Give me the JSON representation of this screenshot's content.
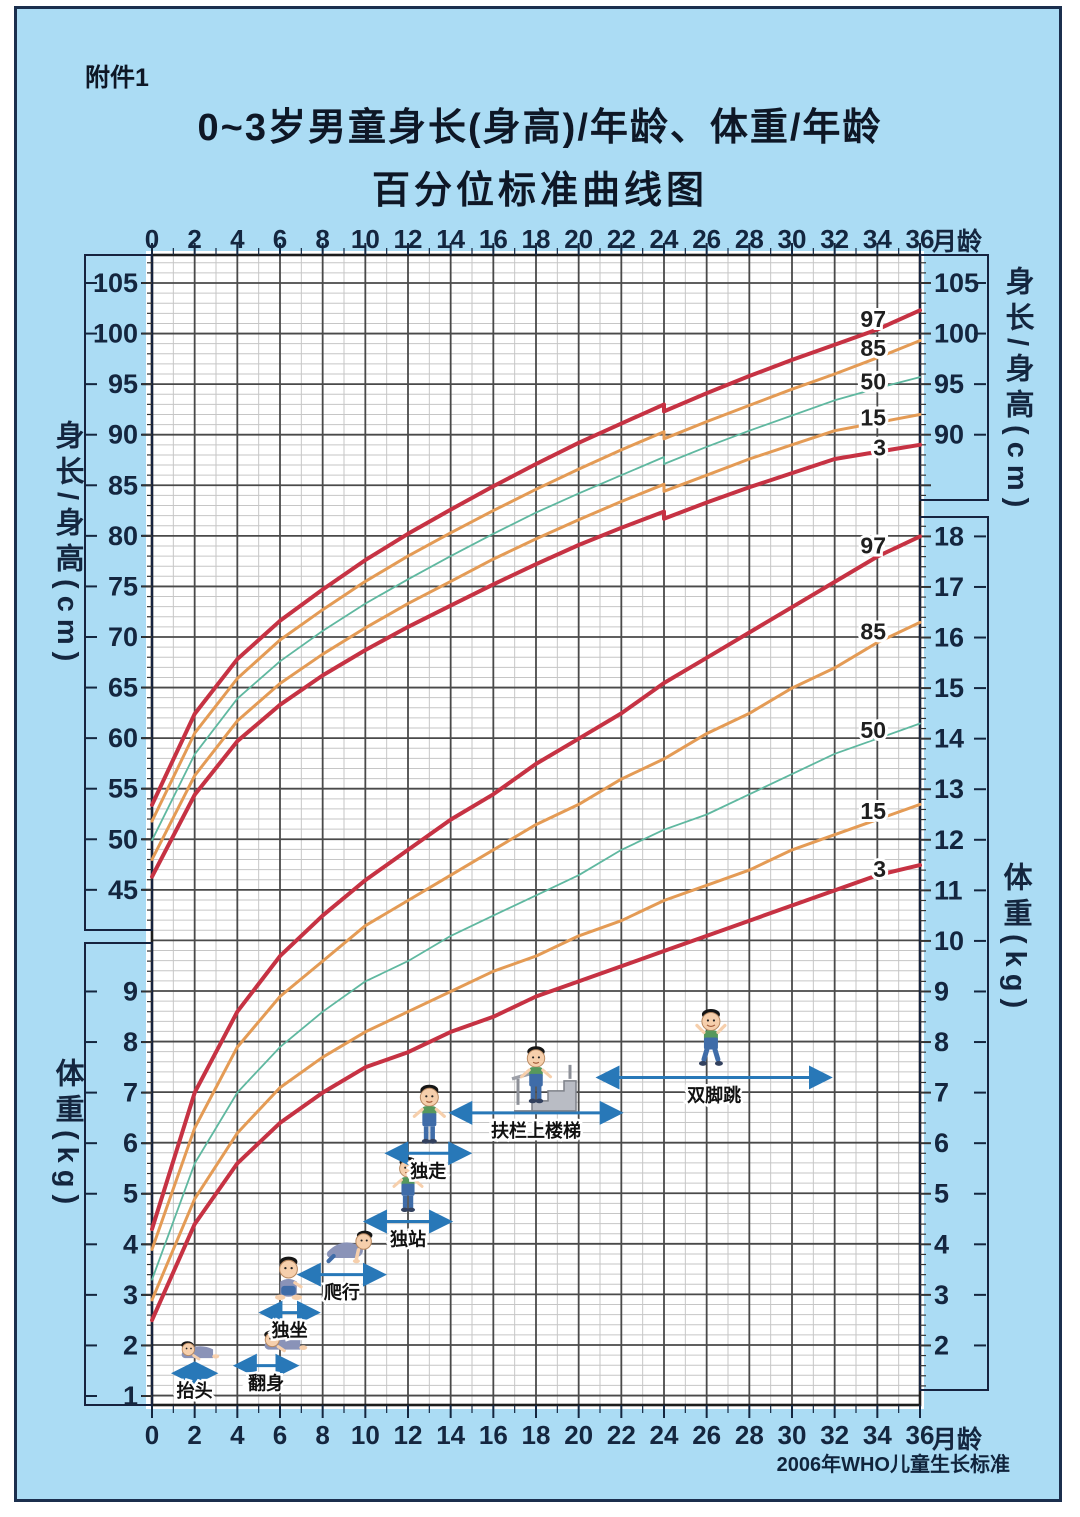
{
  "page": {
    "attachment_label": "附件1",
    "title_line1": "0~3岁男童身长(身高)/年龄、体重/年龄",
    "title_line2": "百分位标准曲线图",
    "age_unit_label": "月龄",
    "source_note": "2006年WHO儿童生长标准"
  },
  "colors": {
    "background": "#abdcf4",
    "plot_bg": "#ffffff",
    "grid_major": "#4a4a4a",
    "grid_minor": "#c6c6c6",
    "plot_border": "#1d1d1d",
    "axis_text": "#14263f",
    "percentile_97_3": "#c63243",
    "percentile_85_15": "#e49b55",
    "percentile_50": "#5fb8a0",
    "milestone_arrow": "#2878b8",
    "baby_skin": "#f6cfac",
    "baby_hair": "#151515",
    "baby_shirt": "#57985c",
    "baby_pants": "#3f6ca8"
  },
  "axes": {
    "months": {
      "unit": "月龄",
      "min": 0,
      "max": 36,
      "minor_step": 1,
      "tick_labels": [
        0,
        2,
        4,
        6,
        8,
        10,
        12,
        14,
        16,
        18,
        20,
        22,
        24,
        26,
        28,
        30,
        32,
        34,
        36
      ]
    },
    "height_cm": {
      "title": "身长/身高(cm)",
      "min": 45,
      "max": 105,
      "left_tick_labels": [
        105,
        100,
        95,
        90,
        85,
        80,
        75,
        70,
        65,
        60,
        55,
        50,
        45
      ],
      "right_tick_labels": [
        105,
        100,
        95,
        90
      ]
    },
    "weight_kg": {
      "title": "体重(kg)",
      "min": 1,
      "max": 18,
      "left_tick_labels": [
        9,
        8,
        7,
        6,
        5,
        4,
        3,
        2,
        1
      ],
      "right_tick_labels": [
        18,
        17,
        16,
        15,
        14,
        13,
        12,
        11,
        10,
        9,
        8,
        7,
        6,
        5,
        4,
        3,
        2
      ]
    }
  },
  "chart_data": [
    {
      "type": "line",
      "title": "身长/身高-年龄 百分位曲线 (男童 0-36月)",
      "ylabel": "身长/身高(cm)",
      "xlabel": "月龄",
      "ylim": [
        45,
        105
      ],
      "xlim": [
        0,
        36
      ],
      "note": "曲线在24月龄处由身长转为身高,出现约0.7cm向下台阶",
      "series": [
        {
          "percentile": "97",
          "color_key": "percentile_97_3",
          "width": 4,
          "points": [
            [
              0,
              53.4
            ],
            [
              2,
              62.4
            ],
            [
              4,
              67.8
            ],
            [
              6,
              71.6
            ],
            [
              8,
              74.7
            ],
            [
              10,
              77.6
            ],
            [
              12,
              80.2
            ],
            [
              14,
              82.6
            ],
            [
              16,
              84.9
            ],
            [
              18,
              87.1
            ],
            [
              20,
              89.2
            ],
            [
              22,
              91.1
            ],
            [
              24,
              93.0
            ],
            [
              24,
              92.3
            ],
            [
              26,
              94.1
            ],
            [
              28,
              95.8
            ],
            [
              30,
              97.4
            ],
            [
              32,
              98.9
            ],
            [
              34,
              100.4
            ],
            [
              36,
              102.3
            ]
          ]
        },
        {
          "percentile": "85",
          "color_key": "percentile_85_15",
          "width": 3,
          "points": [
            [
              0,
              51.8
            ],
            [
              2,
              60.5
            ],
            [
              4,
              65.9
            ],
            [
              6,
              69.7
            ],
            [
              8,
              72.7
            ],
            [
              10,
              75.5
            ],
            [
              12,
              78.0
            ],
            [
              14,
              80.3
            ],
            [
              16,
              82.5
            ],
            [
              18,
              84.6
            ],
            [
              20,
              86.6
            ],
            [
              22,
              88.5
            ],
            [
              24,
              90.3
            ],
            [
              24,
              89.6
            ],
            [
              26,
              91.3
            ],
            [
              28,
              92.9
            ],
            [
              30,
              94.5
            ],
            [
              32,
              96.0
            ],
            [
              34,
              97.6
            ],
            [
              36,
              99.3
            ]
          ]
        },
        {
          "percentile": "50",
          "color_key": "percentile_50",
          "width": 1.8,
          "points": [
            [
              0,
              49.9
            ],
            [
              2,
              58.4
            ],
            [
              4,
              63.9
            ],
            [
              6,
              67.6
            ],
            [
              8,
              70.6
            ],
            [
              10,
              73.3
            ],
            [
              12,
              75.7
            ],
            [
              14,
              78.0
            ],
            [
              16,
              80.2
            ],
            [
              18,
              82.3
            ],
            [
              20,
              84.2
            ],
            [
              22,
              86.0
            ],
            [
              24,
              87.8
            ],
            [
              24,
              87.1
            ],
            [
              26,
              88.8
            ],
            [
              28,
              90.4
            ],
            [
              30,
              91.9
            ],
            [
              32,
              93.4
            ],
            [
              34,
              94.6
            ],
            [
              36,
              95.7
            ]
          ]
        },
        {
          "percentile": "15",
          "color_key": "percentile_85_15",
          "width": 3,
          "points": [
            [
              0,
              48.0
            ],
            [
              2,
              56.3
            ],
            [
              4,
              61.7
            ],
            [
              6,
              65.4
            ],
            [
              8,
              68.3
            ],
            [
              10,
              70.9
            ],
            [
              12,
              73.3
            ],
            [
              14,
              75.5
            ],
            [
              16,
              77.7
            ],
            [
              18,
              79.7
            ],
            [
              20,
              81.6
            ],
            [
              22,
              83.4
            ],
            [
              24,
              85.1
            ],
            [
              24,
              84.4
            ],
            [
              26,
              86.0
            ],
            [
              28,
              87.6
            ],
            [
              30,
              89.0
            ],
            [
              32,
              90.4
            ],
            [
              34,
              91.2
            ],
            [
              36,
              92.0
            ]
          ]
        },
        {
          "percentile": "3",
          "color_key": "percentile_97_3",
          "width": 4,
          "points": [
            [
              0,
              46.3
            ],
            [
              2,
              54.4
            ],
            [
              4,
              59.7
            ],
            [
              6,
              63.3
            ],
            [
              8,
              66.2
            ],
            [
              10,
              68.7
            ],
            [
              12,
              71.0
            ],
            [
              14,
              73.1
            ],
            [
              16,
              75.2
            ],
            [
              18,
              77.2
            ],
            [
              20,
              79.1
            ],
            [
              22,
              80.8
            ],
            [
              24,
              82.4
            ],
            [
              24,
              81.7
            ],
            [
              26,
              83.3
            ],
            [
              28,
              84.8
            ],
            [
              30,
              86.2
            ],
            [
              32,
              87.6
            ],
            [
              34,
              88.3
            ],
            [
              36,
              89.0
            ]
          ]
        }
      ]
    },
    {
      "type": "line",
      "title": "体重-年龄 百分位曲线 (男童 0-36月)",
      "ylabel": "体重(kg)",
      "xlabel": "月龄",
      "ylim": [
        1,
        18
      ],
      "xlim": [
        0,
        36
      ],
      "series": [
        {
          "percentile": "97",
          "color_key": "percentile_97_3",
          "width": 4,
          "points": [
            [
              0,
              4.3
            ],
            [
              2,
              7.0
            ],
            [
              4,
              8.6
            ],
            [
              6,
              9.7
            ],
            [
              8,
              10.5
            ],
            [
              10,
              11.2
            ],
            [
              12,
              11.8
            ],
            [
              14,
              12.4
            ],
            [
              16,
              12.9
            ],
            [
              18,
              13.5
            ],
            [
              20,
              14.0
            ],
            [
              22,
              14.5
            ],
            [
              24,
              15.1
            ],
            [
              26,
              15.6
            ],
            [
              28,
              16.1
            ],
            [
              30,
              16.6
            ],
            [
              32,
              17.1
            ],
            [
              34,
              17.6
            ],
            [
              36,
              18.0
            ]
          ]
        },
        {
          "percentile": "85",
          "color_key": "percentile_85_15",
          "width": 3,
          "points": [
            [
              0,
              3.9
            ],
            [
              2,
              6.3
            ],
            [
              4,
              7.9
            ],
            [
              6,
              8.9
            ],
            [
              8,
              9.6
            ],
            [
              10,
              10.3
            ],
            [
              12,
              10.8
            ],
            [
              14,
              11.3
            ],
            [
              16,
              11.8
            ],
            [
              18,
              12.3
            ],
            [
              20,
              12.7
            ],
            [
              22,
              13.2
            ],
            [
              24,
              13.6
            ],
            [
              26,
              14.1
            ],
            [
              28,
              14.5
            ],
            [
              30,
              15.0
            ],
            [
              32,
              15.4
            ],
            [
              34,
              15.9
            ],
            [
              36,
              16.3
            ]
          ]
        },
        {
          "percentile": "50",
          "color_key": "percentile_50",
          "width": 1.8,
          "points": [
            [
              0,
              3.3
            ],
            [
              2,
              5.6
            ],
            [
              4,
              7.0
            ],
            [
              6,
              7.9
            ],
            [
              8,
              8.6
            ],
            [
              10,
              9.2
            ],
            [
              12,
              9.6
            ],
            [
              14,
              10.1
            ],
            [
              16,
              10.5
            ],
            [
              18,
              10.9
            ],
            [
              20,
              11.3
            ],
            [
              22,
              11.8
            ],
            [
              24,
              12.2
            ],
            [
              26,
              12.5
            ],
            [
              28,
              12.9
            ],
            [
              30,
              13.3
            ],
            [
              32,
              13.7
            ],
            [
              34,
              14.0
            ],
            [
              36,
              14.3
            ]
          ]
        },
        {
          "percentile": "15",
          "color_key": "percentile_85_15",
          "width": 3,
          "points": [
            [
              0,
              2.9
            ],
            [
              2,
              4.9
            ],
            [
              4,
              6.2
            ],
            [
              6,
              7.1
            ],
            [
              8,
              7.7
            ],
            [
              10,
              8.2
            ],
            [
              12,
              8.6
            ],
            [
              14,
              9.0
            ],
            [
              16,
              9.4
            ],
            [
              18,
              9.7
            ],
            [
              20,
              10.1
            ],
            [
              22,
              10.4
            ],
            [
              24,
              10.8
            ],
            [
              26,
              11.1
            ],
            [
              28,
              11.4
            ],
            [
              30,
              11.8
            ],
            [
              32,
              12.1
            ],
            [
              34,
              12.4
            ],
            [
              36,
              12.7
            ]
          ]
        },
        {
          "percentile": "3",
          "color_key": "percentile_97_3",
          "width": 4,
          "points": [
            [
              0,
              2.5
            ],
            [
              2,
              4.4
            ],
            [
              4,
              5.6
            ],
            [
              6,
              6.4
            ],
            [
              8,
              7.0
            ],
            [
              10,
              7.5
            ],
            [
              12,
              7.8
            ],
            [
              14,
              8.2
            ],
            [
              16,
              8.5
            ],
            [
              18,
              8.9
            ],
            [
              20,
              9.2
            ],
            [
              22,
              9.5
            ],
            [
              24,
              9.8
            ],
            [
              26,
              10.1
            ],
            [
              28,
              10.4
            ],
            [
              30,
              10.7
            ],
            [
              32,
              11.0
            ],
            [
              34,
              11.3
            ],
            [
              36,
              11.5
            ]
          ]
        }
      ]
    }
  ],
  "milestones": [
    {
      "label": "抬头",
      "start_month": 1.1,
      "end_month": 2.9,
      "kg_level": 1.45,
      "icon": "baby-head-up-icon",
      "icon_month": 2.2
    },
    {
      "label": "翻身",
      "start_month": 4.0,
      "end_month": 6.7,
      "kg_level": 1.6,
      "icon": "baby-rolling-icon",
      "icon_month": 6.2
    },
    {
      "label": "独坐",
      "start_month": 5.2,
      "end_month": 7.7,
      "kg_level": 2.65,
      "icon": "baby-sitting-icon",
      "icon_month": 6.4
    },
    {
      "label": "爬行",
      "start_month": 7.0,
      "end_month": 10.8,
      "kg_level": 3.4,
      "icon": "baby-crawling-icon",
      "icon_month": 9.0
    },
    {
      "label": "独站",
      "start_month": 10.1,
      "end_month": 13.9,
      "kg_level": 4.45,
      "icon": "baby-standing-icon",
      "icon_month": 12.0
    },
    {
      "label": "独走",
      "start_month": 11.1,
      "end_month": 14.8,
      "kg_level": 5.8,
      "icon": "baby-walking-icon",
      "icon_month": 13.0
    },
    {
      "label": "扶栏上楼梯",
      "start_month": 14.1,
      "end_month": 21.9,
      "kg_level": 6.6,
      "icon": "baby-stairs-icon",
      "icon_month": 18.0
    },
    {
      "label": "双脚跳",
      "start_month": 21.0,
      "end_month": 31.7,
      "kg_level": 7.3,
      "icon": "baby-jumping-icon",
      "icon_month": 26.2
    }
  ]
}
